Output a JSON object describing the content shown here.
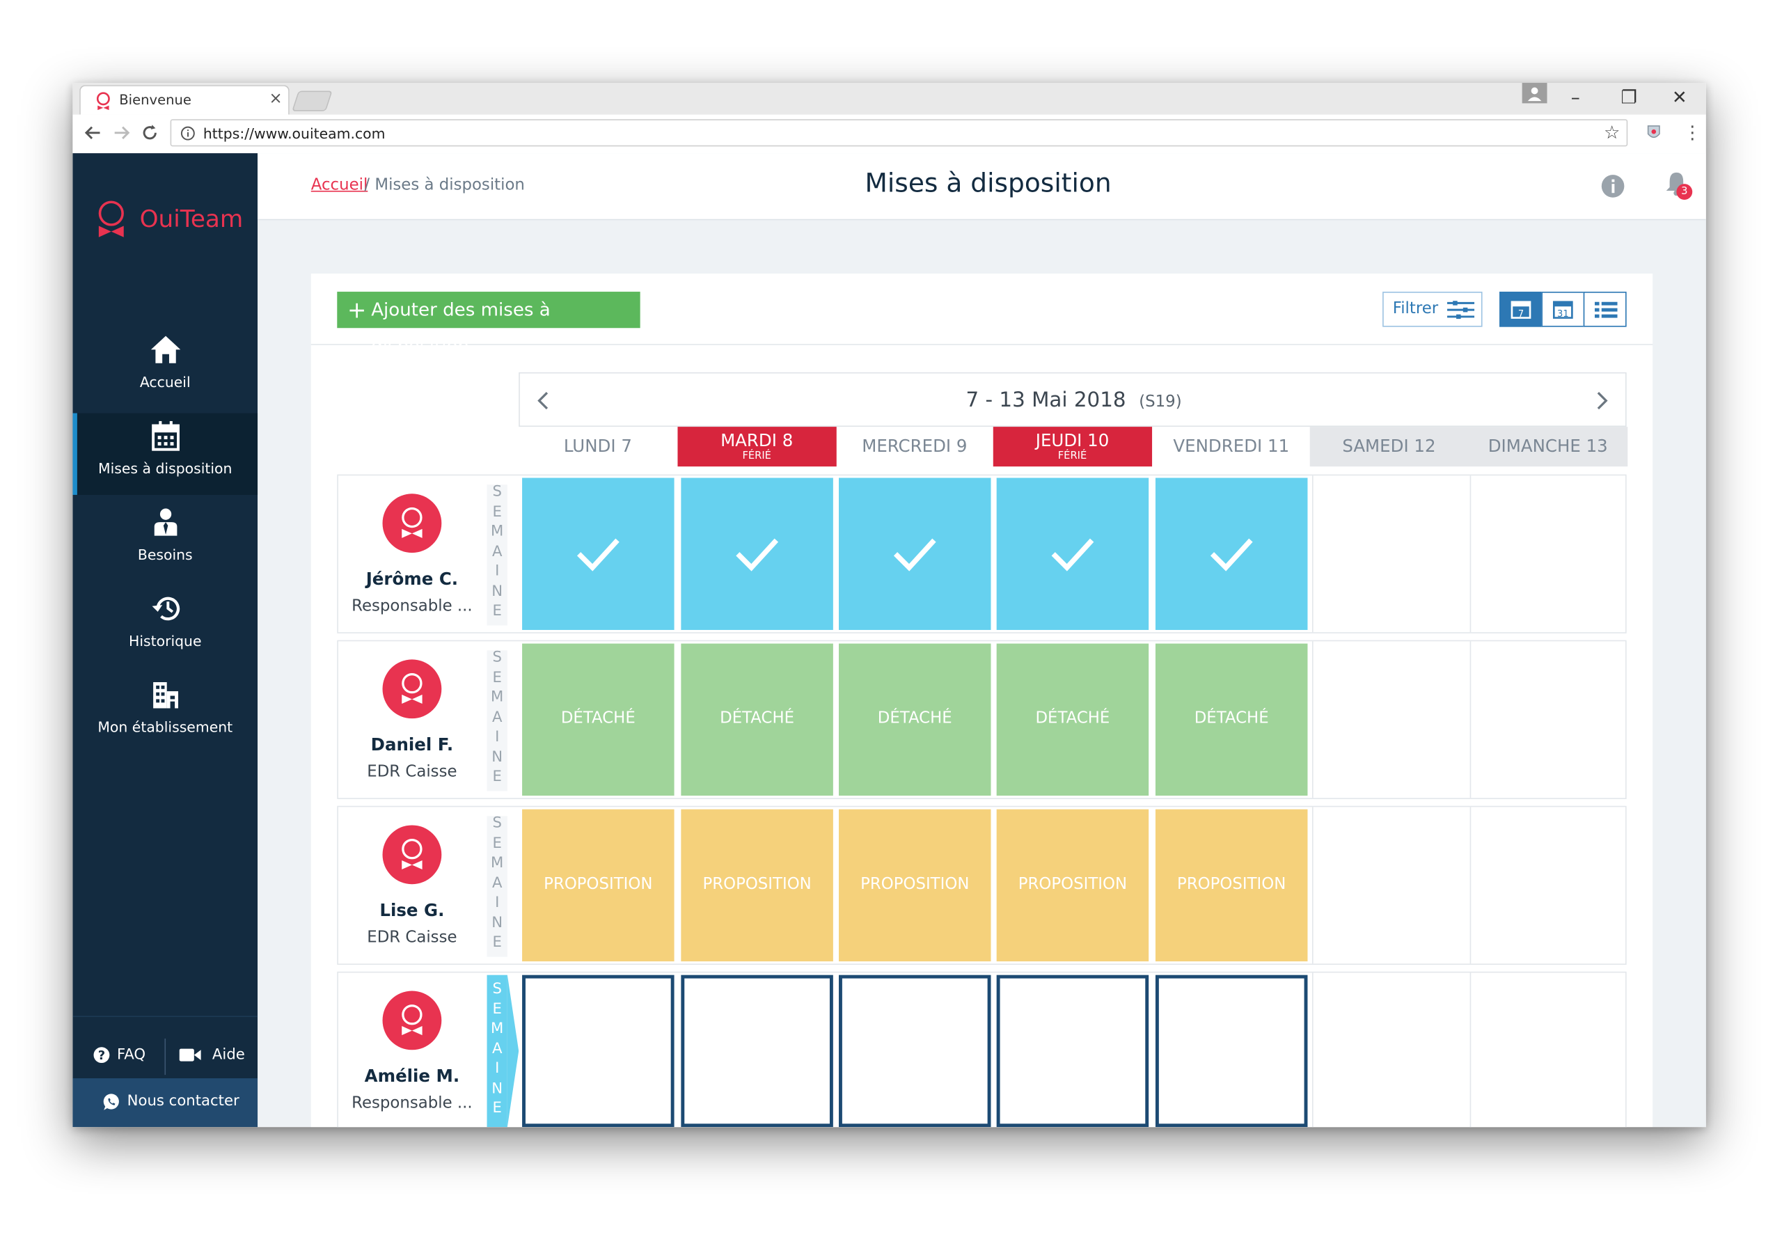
{
  "browser": {
    "tab_title": "Bienvenue",
    "tab_close": "×",
    "url": "https://www.ouiteam.com",
    "win_min": "–",
    "win_restore": "❐",
    "win_close": "✕"
  },
  "sidebar": {
    "logo": "OuiTeam",
    "items": [
      {
        "label": "Accueil",
        "icon": "home-icon"
      },
      {
        "label": "Mises à disposition",
        "icon": "calendar-icon"
      },
      {
        "label": "Besoins",
        "icon": "person-tie-icon"
      },
      {
        "label": "Historique",
        "icon": "history-icon"
      },
      {
        "label": "Mon établissement",
        "icon": "building-icon"
      }
    ],
    "faq": "FAQ",
    "aide": "Aide",
    "contact": "Nous contacter"
  },
  "header": {
    "breadcrumb_home": "Accueil",
    "breadcrumb_rest": "/ Mises à disposition",
    "title": "Mises à disposition",
    "notification_count": "3"
  },
  "toolbar": {
    "add_label": "Ajouter des mises à disposition",
    "filter_label": "Filtrer",
    "view_week": "7",
    "view_month": "31"
  },
  "calendar": {
    "range": "7 - 13 Mai 2018",
    "week_no": "(S19)",
    "holiday_label": "FÉRIÉ",
    "week_letters": [
      "S",
      "E",
      "M",
      "A",
      "I",
      "N",
      "E"
    ],
    "days": [
      {
        "label": "LUNDI 7",
        "type": "normal"
      },
      {
        "label": "MARDI 8",
        "type": "holiday"
      },
      {
        "label": "MERCREDI 9",
        "type": "normal"
      },
      {
        "label": "JEUDI 10",
        "type": "holiday"
      },
      {
        "label": "VENDREDI 11",
        "type": "normal"
      },
      {
        "label": "SAMEDI 12",
        "type": "weekend"
      },
      {
        "label": "DIMANCHE 13",
        "type": "weekend"
      }
    ],
    "rows": [
      {
        "name": "Jérôme C.",
        "role": "Responsable ...",
        "status": "check",
        "cell_text": ""
      },
      {
        "name": "Daniel F.",
        "role": "EDR Caisse",
        "status": "detache",
        "cell_text": "DÉTACHÉ"
      },
      {
        "name": "Lise G.",
        "role": "EDR Caisse",
        "status": "proposition",
        "cell_text": "PROPOSITION"
      },
      {
        "name": "Amélie M.",
        "role": "Responsable ...",
        "status": "empty",
        "cell_text": ""
      }
    ]
  },
  "colors": {
    "brand": "#e83350",
    "sidebar": "#132b40",
    "confirmed": "#66d1ef",
    "detache": "#a0d49a",
    "proposition": "#f5d17b",
    "holiday": "#d7253d",
    "add_button": "#5cb85c"
  }
}
